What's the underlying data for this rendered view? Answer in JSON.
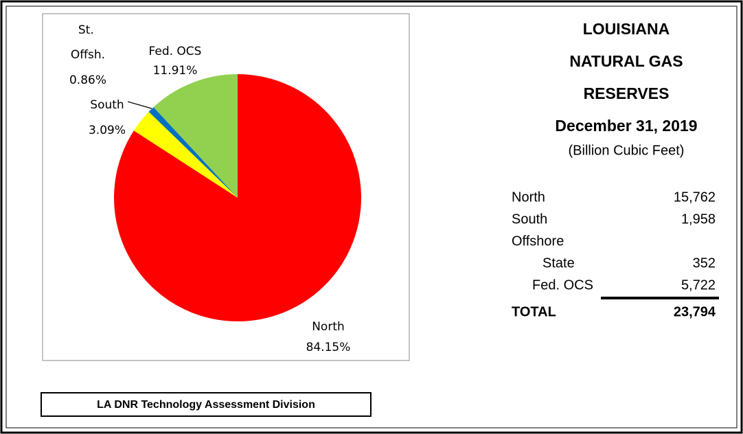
{
  "chart_data": {
    "type": "pie",
    "categories": [
      "North",
      "South",
      "St. Offsh.",
      "Fed. OCS"
    ],
    "values": [
      84.15,
      3.09,
      0.86,
      11.91
    ],
    "value_labels": [
      "84.15%",
      "3.09%",
      "0.86%",
      "11.91%"
    ],
    "colors": [
      "#ff0000",
      "#ffff00",
      "#0070c0",
      "#92d050"
    ]
  },
  "panel": {
    "title": [
      "LOUISIANA",
      "NATURAL GAS",
      "RESERVES"
    ],
    "date": "December 31, 2019",
    "units": "(Billion Cubic Feet)",
    "rows": [
      {
        "label": "North",
        "value": "15,762"
      },
      {
        "label": "South",
        "value": "1,958"
      },
      {
        "label": "Offshore"
      },
      {
        "label": "State",
        "value": "352"
      },
      {
        "label": "Fed. OCS",
        "value": "5,722"
      }
    ],
    "total": {
      "label": "TOTAL",
      "value": "23,794"
    }
  },
  "footer": "LA DNR Technology Assessment Division"
}
